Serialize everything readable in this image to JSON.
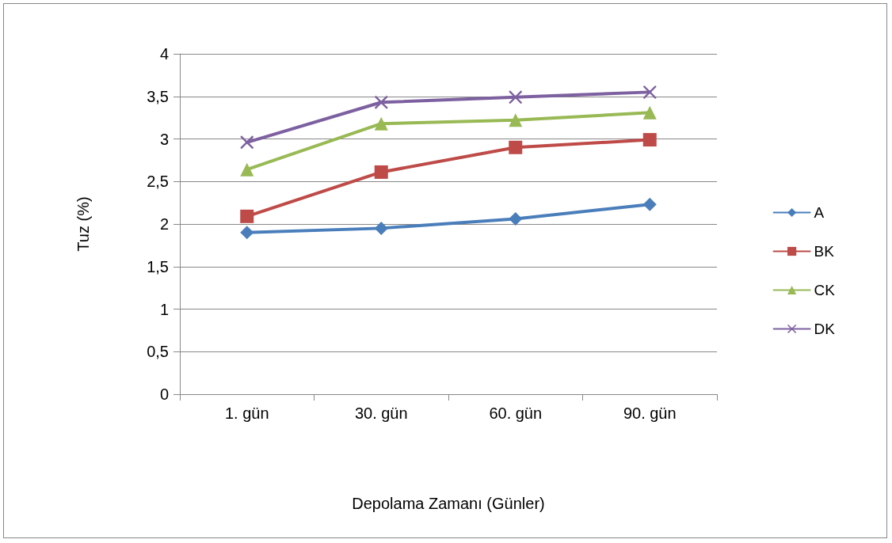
{
  "chart_data": {
    "type": "line",
    "xlabel": "Depolama Zamanı (Günler)",
    "ylabel": "Tuz (%)",
    "categories": [
      "1. gün",
      "30. gün",
      "60. gün",
      "90. gün"
    ],
    "series": [
      {
        "name": "A",
        "color": "#4a7ebb",
        "marker": "diamond",
        "values": [
          1.9,
          1.95,
          2.06,
          2.23
        ]
      },
      {
        "name": "BK",
        "color": "#be4b48",
        "marker": "square",
        "values": [
          2.09,
          2.61,
          2.9,
          2.99
        ]
      },
      {
        "name": "CK",
        "color": "#98b954",
        "marker": "triangle",
        "values": [
          2.64,
          3.18,
          3.22,
          3.31
        ]
      },
      {
        "name": "DK",
        "color": "#7d60a0",
        "marker": "cross",
        "values": [
          2.96,
          3.43,
          3.49,
          3.55
        ]
      }
    ],
    "ylim": [
      0,
      4
    ],
    "yticks": [
      0,
      {
        "value": 0.5,
        "label": "0,5"
      },
      1,
      {
        "value": 1.5,
        "label": "1,5"
      },
      2,
      {
        "value": 2.5,
        "label": "2,5"
      },
      3,
      {
        "value": 3.5,
        "label": "3,5"
      },
      4
    ],
    "grid": "y",
    "legend": "right",
    "line_style": "solid"
  }
}
